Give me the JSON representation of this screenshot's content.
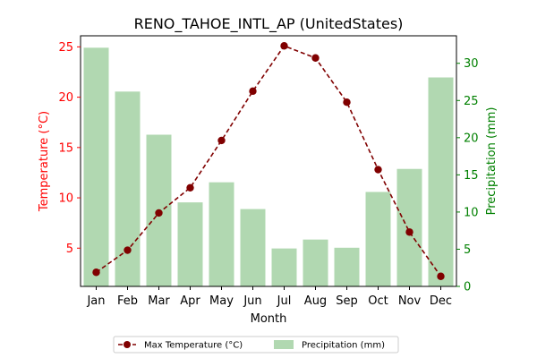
{
  "chart_data": {
    "type": "bar+line",
    "title": "RENO_TAHOE_INTL_AP (UnitedStates)",
    "xlabel": "Month",
    "ylabel_left": "Temperature (°C)",
    "ylabel_right": "Precipitation (mm)",
    "categories": [
      "Jan",
      "Feb",
      "Mar",
      "Apr",
      "May",
      "Jun",
      "Jul",
      "Aug",
      "Sep",
      "Oct",
      "Nov",
      "Dec"
    ],
    "ylim_left": [
      1.2,
      26.1
    ],
    "ylim_right": [
      0,
      33.7
    ],
    "yticks_left": [
      5,
      10,
      15,
      20,
      25
    ],
    "yticks_right": [
      0,
      5,
      10,
      15,
      20,
      25,
      30
    ],
    "grid": false,
    "legend_position": "bottom-center",
    "series": [
      {
        "name": "Max Temperature (°C)",
        "kind": "line",
        "axis": "left",
        "color": "#800000",
        "style": "dashed",
        "marker": "circle",
        "values": [
          2.6,
          4.8,
          8.5,
          11.0,
          15.7,
          20.6,
          25.1,
          23.9,
          19.5,
          12.8,
          6.6,
          2.2
        ]
      },
      {
        "name": "Precipitation (mm)",
        "kind": "bar",
        "axis": "right",
        "color": "#b1d8b1",
        "values": [
          32.1,
          26.2,
          20.4,
          11.3,
          14.0,
          10.4,
          5.1,
          6.3,
          5.2,
          12.7,
          15.8,
          28.1
        ]
      }
    ],
    "axis_colors": {
      "left": "#ff0000",
      "right": "#008000"
    }
  }
}
